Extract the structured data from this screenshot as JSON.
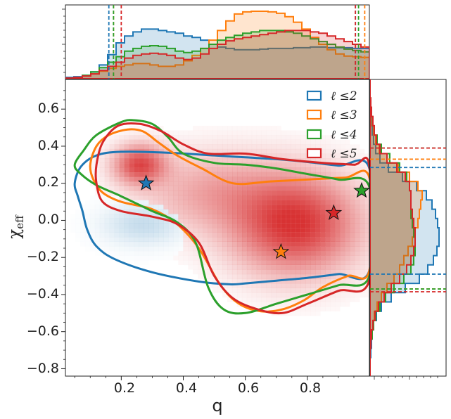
{
  "chart_data": {
    "type": "joint-density",
    "xlabel": "q",
    "ylabel": "χ",
    "ylabel_sub": "eff",
    "xlim": [
      0.02,
      1.0
    ],
    "ylim": [
      -0.84,
      0.76
    ],
    "xticks": [
      0.2,
      0.4,
      0.6,
      0.8
    ],
    "xtick_labels": [
      "0.2",
      "0.4",
      "0.6",
      "0.8"
    ],
    "yticks": [
      0.6,
      0.4,
      0.2,
      0.0,
      -0.2,
      -0.4,
      -0.6,
      -0.8
    ],
    "ytick_labels": [
      "0.6",
      "0.4",
      "0.2",
      "0.0",
      "−0.2",
      "−0.4",
      "−0.6",
      "−0.8"
    ],
    "legend": [
      {
        "label": "ℓ ≤2",
        "color": "#1f77b4"
      },
      {
        "label": "ℓ ≤3",
        "color": "#ff7f0e"
      },
      {
        "label": "ℓ ≤4",
        "color": "#2ca02c"
      },
      {
        "label": "ℓ ≤5",
        "color": "#d62728"
      }
    ],
    "series": [
      {
        "name": "ℓ ≤2",
        "color": "#1f77b4",
        "star": [
          0.28,
          0.2
        ],
        "q_interval": [
          0.16,
          0.955
        ],
        "chi_interval": [
          -0.29,
          0.285
        ],
        "contour": [
          [
            0.05,
            0.2
          ],
          [
            0.07,
            0.29
          ],
          [
            0.12,
            0.35
          ],
          [
            0.2,
            0.37
          ],
          [
            0.35,
            0.365
          ],
          [
            0.5,
            0.35
          ],
          [
            0.6,
            0.34
          ],
          [
            0.7,
            0.33
          ],
          [
            0.8,
            0.315
          ],
          [
            0.9,
            0.295
          ],
          [
            1.0,
            0.28
          ],
          [
            1.0,
            -0.27
          ],
          [
            0.9,
            -0.29
          ],
          [
            0.8,
            -0.31
          ],
          [
            0.7,
            -0.325
          ],
          [
            0.6,
            -0.34
          ],
          [
            0.55,
            -0.345
          ],
          [
            0.45,
            -0.33
          ],
          [
            0.3,
            -0.28
          ],
          [
            0.18,
            -0.21
          ],
          [
            0.12,
            -0.14
          ],
          [
            0.09,
            -0.05
          ],
          [
            0.075,
            0.05
          ],
          [
            0.06,
            0.13
          ]
        ]
      },
      {
        "name": "ℓ ≤3",
        "color": "#ff7f0e",
        "star": [
          0.715,
          -0.17
        ],
        "q_interval": [
          0.175,
          0.985
        ],
        "chi_interval": [
          -0.37,
          0.33
        ],
        "contour": [
          [
            0.1,
            0.3
          ],
          [
            0.12,
            0.4
          ],
          [
            0.16,
            0.46
          ],
          [
            0.22,
            0.49
          ],
          [
            0.27,
            0.48
          ],
          [
            0.32,
            0.42
          ],
          [
            0.38,
            0.35
          ],
          [
            0.46,
            0.28
          ],
          [
            0.56,
            0.2
          ],
          [
            0.68,
            0.21
          ],
          [
            0.8,
            0.22
          ],
          [
            0.92,
            0.23
          ],
          [
            1.0,
            0.23
          ],
          [
            1.0,
            -0.27
          ],
          [
            0.93,
            -0.3
          ],
          [
            0.85,
            -0.36
          ],
          [
            0.79,
            -0.43
          ],
          [
            0.72,
            -0.48
          ],
          [
            0.65,
            -0.49
          ],
          [
            0.58,
            -0.45
          ],
          [
            0.52,
            -0.35
          ],
          [
            0.45,
            -0.15
          ],
          [
            0.38,
            -0.02
          ],
          [
            0.3,
            0.06
          ],
          [
            0.2,
            0.1
          ],
          [
            0.14,
            0.15
          ],
          [
            0.11,
            0.22
          ]
        ]
      },
      {
        "name": "ℓ ≤4",
        "color": "#2ca02c",
        "star": [
          0.975,
          0.16
        ],
        "q_interval": [
          0.175,
          0.965
        ],
        "chi_interval": [
          -0.37,
          0.39
        ],
        "contour": [
          [
            0.05,
            0.3
          ],
          [
            0.08,
            0.38
          ],
          [
            0.12,
            0.46
          ],
          [
            0.2,
            0.53
          ],
          [
            0.24,
            0.54
          ],
          [
            0.3,
            0.52
          ],
          [
            0.35,
            0.45
          ],
          [
            0.4,
            0.36
          ],
          [
            0.5,
            0.31
          ],
          [
            0.6,
            0.3
          ],
          [
            0.7,
            0.28
          ],
          [
            0.8,
            0.25
          ],
          [
            0.9,
            0.22
          ],
          [
            1.0,
            0.18
          ],
          [
            1.0,
            -0.3
          ],
          [
            0.9,
            -0.35
          ],
          [
            0.8,
            -0.4
          ],
          [
            0.7,
            -0.45
          ],
          [
            0.6,
            -0.5
          ],
          [
            0.53,
            -0.48
          ],
          [
            0.48,
            -0.36
          ],
          [
            0.44,
            -0.12
          ],
          [
            0.38,
            -0.01
          ],
          [
            0.3,
            0.05
          ],
          [
            0.2,
            0.13
          ],
          [
            0.12,
            0.19
          ],
          [
            0.07,
            0.25
          ]
        ]
      },
      {
        "name": "ℓ ≤5",
        "color": "#d62728",
        "star": [
          0.885,
          0.04
        ],
        "q_interval": [
          0.2,
          0.955
        ],
        "chi_interval": [
          -0.385,
          0.39
        ],
        "contour": [
          [
            0.12,
            0.3
          ],
          [
            0.14,
            0.42
          ],
          [
            0.19,
            0.51
          ],
          [
            0.26,
            0.52
          ],
          [
            0.33,
            0.48
          ],
          [
            0.4,
            0.41
          ],
          [
            0.48,
            0.36
          ],
          [
            0.6,
            0.36
          ],
          [
            0.72,
            0.33
          ],
          [
            0.85,
            0.31
          ],
          [
            0.95,
            0.3
          ],
          [
            1.0,
            0.29
          ],
          [
            1.0,
            -0.32
          ],
          [
            0.9,
            -0.38
          ],
          [
            0.8,
            -0.45
          ],
          [
            0.72,
            -0.5
          ],
          [
            0.64,
            -0.48
          ],
          [
            0.56,
            -0.42
          ],
          [
            0.5,
            -0.3
          ],
          [
            0.45,
            -0.12
          ],
          [
            0.38,
            -0.02
          ],
          [
            0.3,
            0.02
          ],
          [
            0.2,
            0.05
          ],
          [
            0.14,
            0.1
          ],
          [
            0.12,
            0.2
          ]
        ]
      }
    ],
    "density_peaks": [
      {
        "q": 0.76,
        "chi": -0.02,
        "weight": 1.0,
        "sq": 0.13,
        "schi": 0.17,
        "color": "red"
      },
      {
        "q": 0.26,
        "chi": 0.3,
        "weight": 0.85,
        "sq": 0.055,
        "schi": 0.07,
        "color": "red"
      },
      {
        "q": 0.5,
        "chi": 0.15,
        "weight": 0.35,
        "sq": 0.15,
        "schi": 0.14,
        "color": "red"
      },
      {
        "q": 0.27,
        "chi": -0.02,
        "weight": 0.45,
        "sq": 0.09,
        "schi": 0.08,
        "color": "blue"
      }
    ],
    "top_marginal": [
      {
        "name": "ℓ ≤2",
        "color": "#1f77b4",
        "values": [
          0.02,
          0.03,
          0.05,
          0.1,
          0.2,
          0.35,
          0.52,
          0.62,
          0.68,
          0.72,
          0.72,
          0.7,
          0.68,
          0.66,
          0.62,
          0.6,
          0.56,
          0.5,
          0.46,
          0.44,
          0.42,
          0.42,
          0.42,
          0.43,
          0.44,
          0.44,
          0.44,
          0.45,
          0.45,
          0.46,
          0.46,
          0.45,
          0.45,
          0.45,
          0.44,
          0.44
        ]
      },
      {
        "name": "ℓ ≤3",
        "color": "#ff7f0e",
        "values": [
          0.01,
          0.02,
          0.04,
          0.07,
          0.11,
          0.15,
          0.18,
          0.2,
          0.22,
          0.22,
          0.2,
          0.18,
          0.18,
          0.2,
          0.26,
          0.34,
          0.44,
          0.56,
          0.7,
          0.84,
          0.94,
          0.97,
          0.98,
          0.98,
          0.97,
          0.95,
          0.9,
          0.82,
          0.72,
          0.6,
          0.5,
          0.42,
          0.36,
          0.33,
          0.32,
          0.31
        ]
      },
      {
        "name": "ℓ ≤4",
        "color": "#2ca02c",
        "values": [
          0.01,
          0.02,
          0.05,
          0.1,
          0.16,
          0.24,
          0.32,
          0.4,
          0.44,
          0.47,
          0.48,
          0.47,
          0.44,
          0.4,
          0.38,
          0.4,
          0.44,
          0.5,
          0.56,
          0.6,
          0.63,
          0.66,
          0.68,
          0.7,
          0.7,
          0.7,
          0.68,
          0.66,
          0.62,
          0.58,
          0.54,
          0.5,
          0.46,
          0.43,
          0.41,
          0.39
        ]
      },
      {
        "name": "ℓ ≤5",
        "color": "#d62728",
        "values": [
          0.01,
          0.02,
          0.04,
          0.07,
          0.12,
          0.18,
          0.24,
          0.3,
          0.34,
          0.36,
          0.37,
          0.36,
          0.34,
          0.3,
          0.28,
          0.3,
          0.36,
          0.44,
          0.5,
          0.55,
          0.58,
          0.6,
          0.62,
          0.64,
          0.66,
          0.68,
          0.7,
          0.7,
          0.7,
          0.68,
          0.66,
          0.62,
          0.58,
          0.54,
          0.5,
          0.46
        ]
      }
    ],
    "right_marginal": [
      {
        "name": "ℓ ≤2",
        "color": "#1f77b4",
        "values": [
          0.0,
          0.0,
          0.01,
          0.01,
          0.02,
          0.03,
          0.05,
          0.08,
          0.14,
          0.26,
          0.46,
          0.66,
          0.8,
          0.88,
          0.93,
          0.96,
          0.98,
          0.98,
          0.95,
          0.9,
          0.82,
          0.7,
          0.5,
          0.3,
          0.16,
          0.09,
          0.05,
          0.03,
          0.02,
          0.01,
          0.0,
          0.0
        ]
      },
      {
        "name": "ℓ ≤3",
        "color": "#ff7f0e",
        "values": [
          0.0,
          0.0,
          0.01,
          0.02,
          0.03,
          0.05,
          0.08,
          0.13,
          0.24,
          0.4,
          0.56,
          0.68,
          0.74,
          0.72,
          0.7,
          0.68,
          0.64,
          0.6,
          0.54,
          0.48,
          0.42,
          0.34,
          0.24,
          0.16,
          0.1,
          0.06,
          0.04,
          0.02,
          0.01,
          0.0,
          0.0,
          0.0
        ]
      },
      {
        "name": "ℓ ≤4",
        "color": "#2ca02c",
        "values": [
          0.0,
          0.0,
          0.01,
          0.02,
          0.04,
          0.06,
          0.1,
          0.16,
          0.28,
          0.42,
          0.52,
          0.56,
          0.58,
          0.58,
          0.58,
          0.6,
          0.62,
          0.64,
          0.64,
          0.62,
          0.58,
          0.48,
          0.34,
          0.22,
          0.14,
          0.08,
          0.05,
          0.03,
          0.01,
          0.0,
          0.0,
          0.0
        ]
      },
      {
        "name": "ℓ ≤5",
        "color": "#d62728",
        "values": [
          0.0,
          0.0,
          0.01,
          0.02,
          0.04,
          0.06,
          0.09,
          0.14,
          0.24,
          0.38,
          0.5,
          0.56,
          0.58,
          0.58,
          0.6,
          0.62,
          0.64,
          0.64,
          0.62,
          0.58,
          0.52,
          0.42,
          0.3,
          0.2,
          0.12,
          0.07,
          0.04,
          0.02,
          0.01,
          0.0,
          0.0,
          0.0
        ]
      }
    ]
  }
}
